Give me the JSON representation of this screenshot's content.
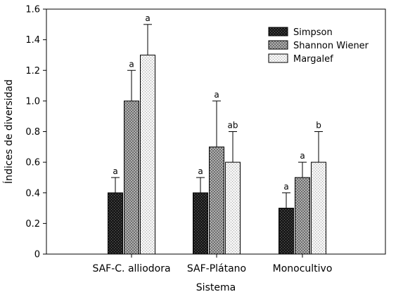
{
  "chart_data": {
    "type": "bar",
    "xlabel": "Sistema",
    "ylabel": "Índices de diversidad",
    "ylim": [
      0,
      1.6
    ],
    "yticks": [
      "0",
      "0.2",
      "0.4",
      "0.6",
      "0.8",
      "1.0",
      "1.2",
      "1.4",
      "1.6"
    ],
    "categories": [
      "SAF-C. alliodora",
      "SAF-Plátano",
      "Monocultivo"
    ],
    "grid": false,
    "legend_position": "top-right",
    "series": [
      {
        "name": "Simpson",
        "pattern": "dark",
        "values": [
          0.4,
          0.4,
          0.3
        ],
        "errors": [
          0.1,
          0.1,
          0.1
        ],
        "labels": [
          "a",
          "a",
          "a"
        ]
      },
      {
        "name": "Shannon Wiener",
        "pattern": "medium",
        "values": [
          1.0,
          0.7,
          0.5
        ],
        "errors": [
          0.2,
          0.3,
          0.1
        ],
        "labels": [
          "a",
          "a",
          "a"
        ]
      },
      {
        "name": "Margalef",
        "pattern": "light",
        "values": [
          1.3,
          0.6,
          0.6
        ],
        "errors": [
          0.2,
          0.2,
          0.2
        ],
        "labels": [
          "a",
          "ab",
          "b"
        ]
      }
    ]
  }
}
